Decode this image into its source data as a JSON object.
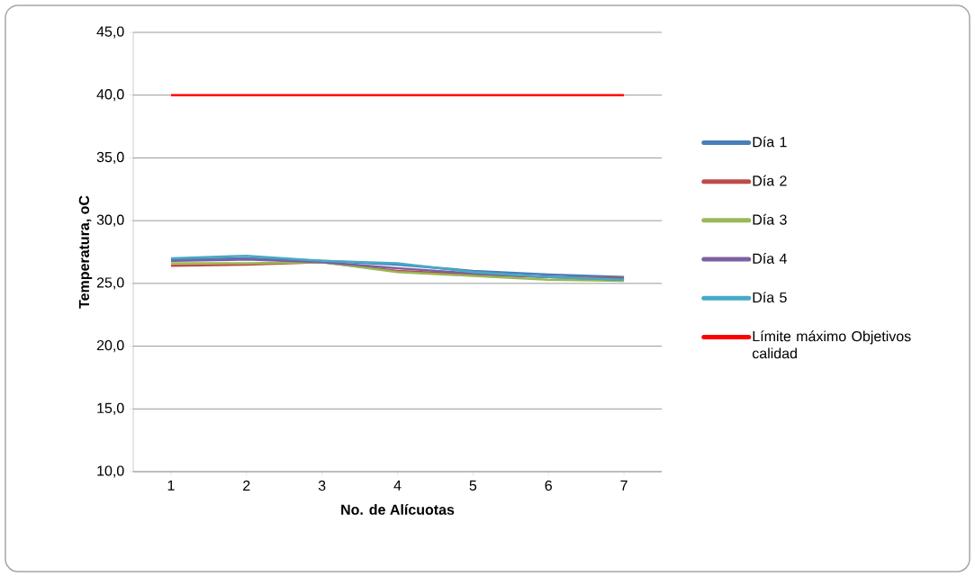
{
  "chart_data": {
    "type": "line",
    "xlabel": "No.  de Alícuotas",
    "ylabel": "Temperatura, oC",
    "categories": [
      "1",
      "2",
      "3",
      "4",
      "5",
      "6",
      "7"
    ],
    "series": [
      {
        "name": "Día 1",
        "color": "#4a7ebb",
        "values": [
          26.9,
          27.0,
          26.8,
          26.5,
          26.0,
          25.7,
          25.5
        ]
      },
      {
        "name": "Día 2",
        "color": "#be4b48",
        "values": [
          26.4,
          26.5,
          26.7,
          26.0,
          25.7,
          25.5,
          25.4
        ]
      },
      {
        "name": "Día 3",
        "color": "#98b954",
        "values": [
          26.6,
          26.6,
          26.7,
          25.9,
          25.6,
          25.3,
          25.2
        ]
      },
      {
        "name": "Día 4",
        "color": "#7d60a0",
        "values": [
          26.8,
          26.9,
          26.7,
          26.2,
          25.8,
          25.5,
          25.3
        ]
      },
      {
        "name": "Día 5",
        "color": "#46aac5",
        "values": [
          27.0,
          27.2,
          26.8,
          26.6,
          25.9,
          25.5,
          25.3
        ]
      },
      {
        "name": "Límite máximo Objetivos calidad",
        "color": "#ff0000",
        "values": [
          40,
          40,
          40,
          40,
          40,
          40,
          40
        ]
      }
    ],
    "ylim": [
      10,
      45
    ],
    "yticks": [
      {
        "value": 10,
        "label": "10,0"
      },
      {
        "value": 15,
        "label": "15,0"
      },
      {
        "value": 20,
        "label": "20,0"
      },
      {
        "value": 25,
        "label": "25,0"
      },
      {
        "value": 30,
        "label": "30,0"
      },
      {
        "value": 35,
        "label": "35,0"
      },
      {
        "value": 40,
        "label": "40,0"
      },
      {
        "value": 45,
        "label": "45,0"
      }
    ],
    "grid": "y",
    "legend": "right",
    "marker": "none",
    "line_style": "solid"
  }
}
